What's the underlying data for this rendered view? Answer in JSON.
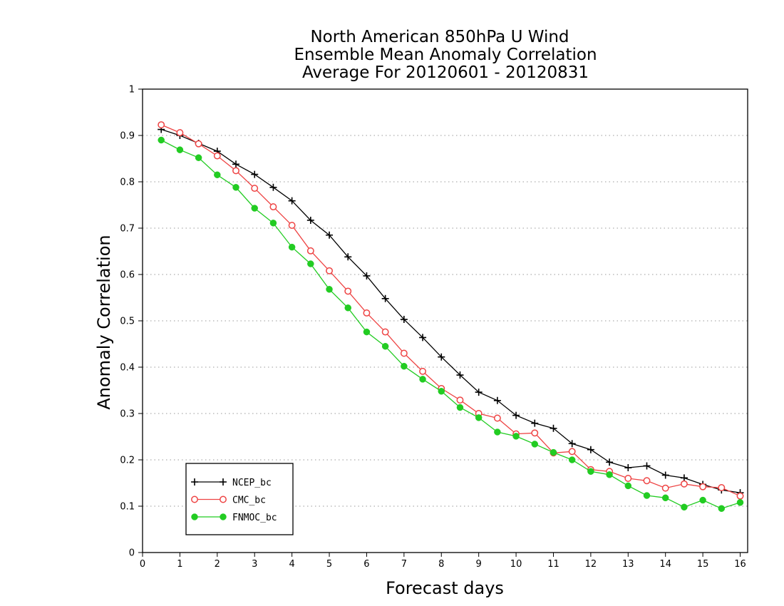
{
  "chart_data": {
    "type": "line",
    "title_lines": [
      "North American 850hPa U Wind",
      "Ensemble Mean Anomaly Correlation",
      "Average For 20120601 - 20120831"
    ],
    "xlabel": "Forecast days",
    "ylabel": "Anomaly Correlation",
    "xlim": [
      0,
      16.2
    ],
    "ylim": [
      0,
      1
    ],
    "x_ticks": [
      0,
      1,
      2,
      3,
      4,
      5,
      6,
      7,
      8,
      9,
      10,
      11,
      12,
      13,
      14,
      15,
      16
    ],
    "y_ticks": [
      0,
      0.1,
      0.2,
      0.3,
      0.4,
      0.5,
      0.6,
      0.7,
      0.8,
      0.9,
      1
    ],
    "y_tick_labels": [
      "0",
      "0.1",
      "0.2",
      "0.3",
      "0.4",
      "0.5",
      "0.6",
      "0.7",
      "0.8",
      "0.9",
      "1"
    ],
    "grid": "horizontal dotted",
    "legend_position": "bottom-left",
    "x": [
      0.5,
      1,
      1.5,
      2,
      2.5,
      3,
      3.5,
      4,
      4.5,
      5,
      5.5,
      6,
      6.5,
      7,
      7.5,
      8,
      8.5,
      9,
      9.5,
      10,
      10.5,
      11,
      11.5,
      12,
      12.5,
      13,
      13.5,
      14,
      14.5,
      15,
      15.5,
      16
    ],
    "series": [
      {
        "name": "NCEP_bc",
        "color": "#000000",
        "marker": "plus",
        "values": [
          0.913,
          0.9,
          0.883,
          0.866,
          0.838,
          0.816,
          0.788,
          0.759,
          0.717,
          0.685,
          0.638,
          0.597,
          0.548,
          0.503,
          0.464,
          0.422,
          0.383,
          0.346,
          0.328,
          0.296,
          0.279,
          0.268,
          0.235,
          0.222,
          0.195,
          0.183,
          0.187,
          0.167,
          0.161,
          0.147,
          0.135,
          0.129
        ]
      },
      {
        "name": "CMC_bc",
        "color": "#ee4444",
        "marker": "open-circle",
        "values": [
          0.923,
          0.906,
          0.882,
          0.856,
          0.824,
          0.786,
          0.746,
          0.706,
          0.651,
          0.608,
          0.564,
          0.517,
          0.476,
          0.43,
          0.391,
          0.354,
          0.329,
          0.3,
          0.29,
          0.256,
          0.258,
          0.215,
          0.218,
          0.179,
          0.175,
          0.16,
          0.155,
          0.139,
          0.148,
          0.142,
          0.14,
          0.122
        ]
      },
      {
        "name": "FNMOC_bc",
        "color": "#22cc22",
        "marker": "filled-circle",
        "values": [
          0.89,
          0.869,
          0.852,
          0.815,
          0.788,
          0.743,
          0.711,
          0.659,
          0.623,
          0.568,
          0.528,
          0.476,
          0.445,
          0.402,
          0.374,
          0.348,
          0.313,
          0.291,
          0.26,
          0.251,
          0.234,
          0.216,
          0.2,
          0.175,
          0.168,
          0.144,
          0.123,
          0.118,
          0.098,
          0.113,
          0.095,
          0.108
        ]
      }
    ]
  }
}
